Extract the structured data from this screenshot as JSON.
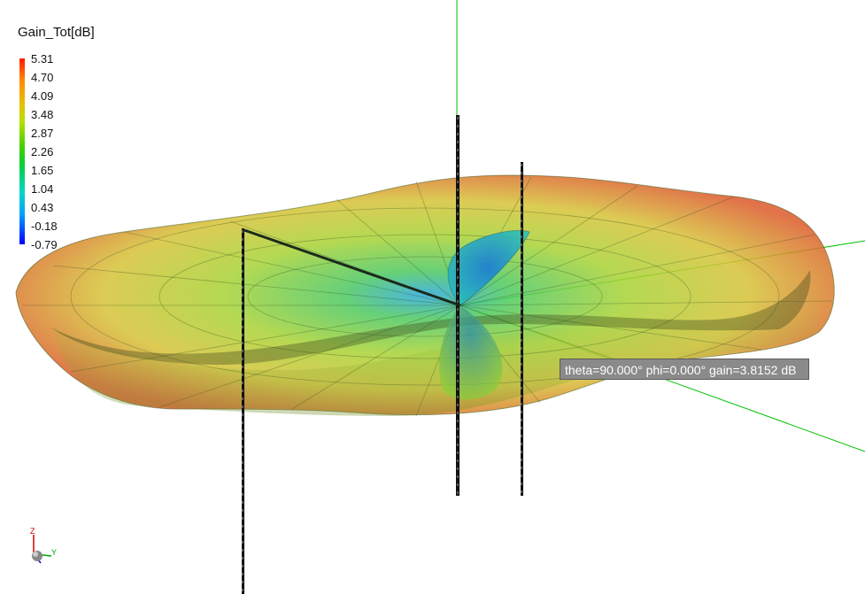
{
  "legend": {
    "title": "Gain_Tot[dB]",
    "values": [
      "5.31",
      "4.70",
      "4.09",
      "3.48",
      "2.87",
      "2.26",
      "1.65",
      "1.04",
      "0.43",
      "-0.18",
      "-0.79"
    ]
  },
  "tooltip": {
    "text": "theta=90.000° phi=0.000° gain=3.8152 dB"
  },
  "triad": {
    "z_label": "Z",
    "y_label": "Y"
  },
  "colors": {
    "max": "#e03a1e",
    "high": "#e0b028",
    "mid": "#b8d02a",
    "low": "#54c83a",
    "min": "#2060e0",
    "axis": "#00c000"
  }
}
